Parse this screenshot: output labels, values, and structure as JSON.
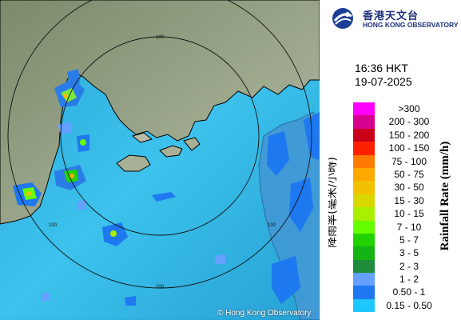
{
  "header": {
    "org_name_cn": "香港天文台",
    "org_name_en": "HONG KONG OBSERVATORY",
    "time": "16:36 HKT",
    "date": "19-07-2025"
  },
  "map": {
    "range_labels": [
      "100",
      "100",
      "100",
      "100"
    ],
    "copyright": "© Hong Kong Observatory"
  },
  "legend": {
    "title_cn": "降雨率(毫米/小時)",
    "title_en": "Rainfall Rate (mm/h)",
    "items": [
      {
        "label": ">300",
        "color": "#ff00ff"
      },
      {
        "label": "200 - 300",
        "color": "#d6008e"
      },
      {
        "label": "150 - 200",
        "color": "#c8001a"
      },
      {
        "label": "100 - 150",
        "color": "#ff2000"
      },
      {
        "label": "75 - 100",
        "color": "#ff7a00"
      },
      {
        "label": "50 - 75",
        "color": "#ffa800"
      },
      {
        "label": "30 - 50",
        "color": "#f2c200"
      },
      {
        "label": "15 - 30",
        "color": "#d8d800"
      },
      {
        "label": "10 - 15",
        "color": "#aaee00"
      },
      {
        "label": "7 - 10",
        "color": "#66ff00"
      },
      {
        "label": "5 - 7",
        "color": "#22d200"
      },
      {
        "label": "3 - 5",
        "color": "#14b414"
      },
      {
        "label": "2 - 3",
        "color": "#1e8c3c"
      },
      {
        "label": "1 - 2",
        "color": "#64a0ff"
      },
      {
        "label": "0.50 - 1",
        "color": "#1e78f0"
      },
      {
        "label": "0.15 - 0.50",
        "color": "#1ec8ff"
      }
    ]
  }
}
